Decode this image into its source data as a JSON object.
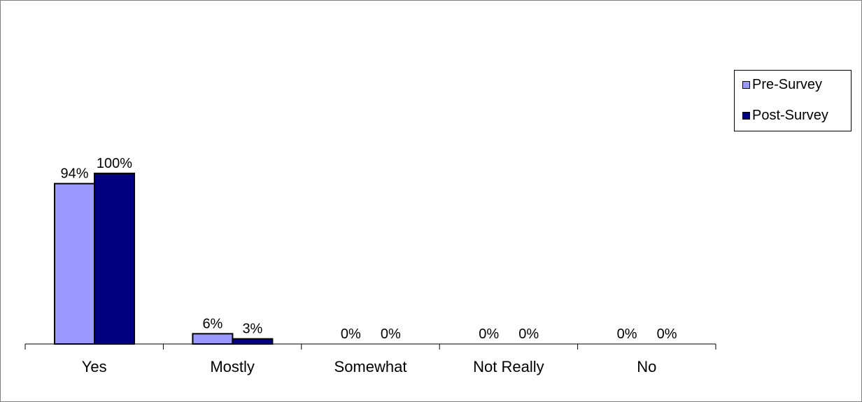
{
  "chart_data": {
    "type": "bar",
    "categories": [
      "Yes",
      "Mostly",
      "Somewhat",
      "Not Really",
      "No"
    ],
    "series": [
      {
        "name": "Pre-Survey",
        "values": [
          94,
          6,
          0,
          0,
          0
        ],
        "labels": [
          "94%",
          "6%",
          "0%",
          "0%",
          "0%"
        ],
        "color": "#9999ff"
      },
      {
        "name": "Post-Survey",
        "values": [
          100,
          3,
          0,
          0,
          0
        ],
        "labels": [
          "100%",
          "3%",
          "0%",
          "0%",
          "0%"
        ],
        "color": "#000080"
      }
    ],
    "ylim": [
      0,
      100
    ],
    "grid": false,
    "legend_position": "right"
  }
}
